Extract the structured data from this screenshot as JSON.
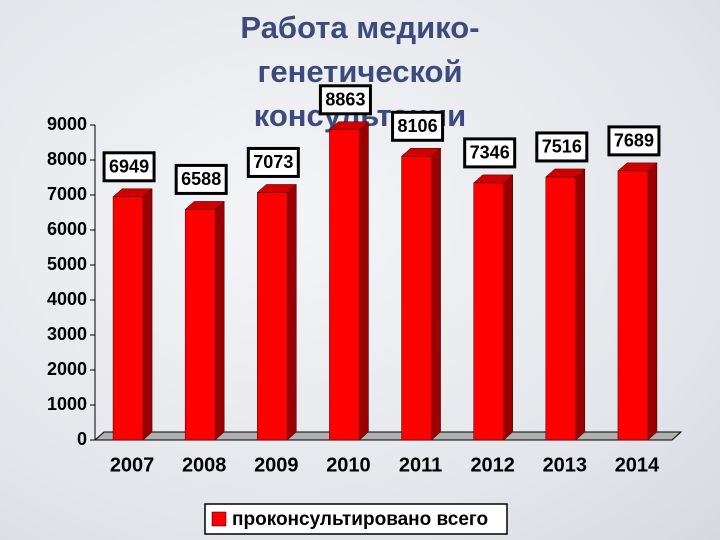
{
  "chart_data": {
    "type": "bar",
    "title": "Работа медико-генетической консультации",
    "categories": [
      "2007",
      "2008",
      "2009",
      "2010",
      "2011",
      "2012",
      "2013",
      "2014"
    ],
    "series": [
      {
        "name": "проконсультировано всего",
        "color": "#ff0000",
        "values": [
          6949,
          6588,
          7073,
          8863,
          8106,
          7346,
          7516,
          7689
        ]
      }
    ],
    "ylim": [
      0,
      9000
    ],
    "yticks": [
      0,
      1000,
      2000,
      3000,
      4000,
      5000,
      6000,
      7000,
      8000,
      9000
    ],
    "grid": false,
    "legend": "bottom"
  }
}
